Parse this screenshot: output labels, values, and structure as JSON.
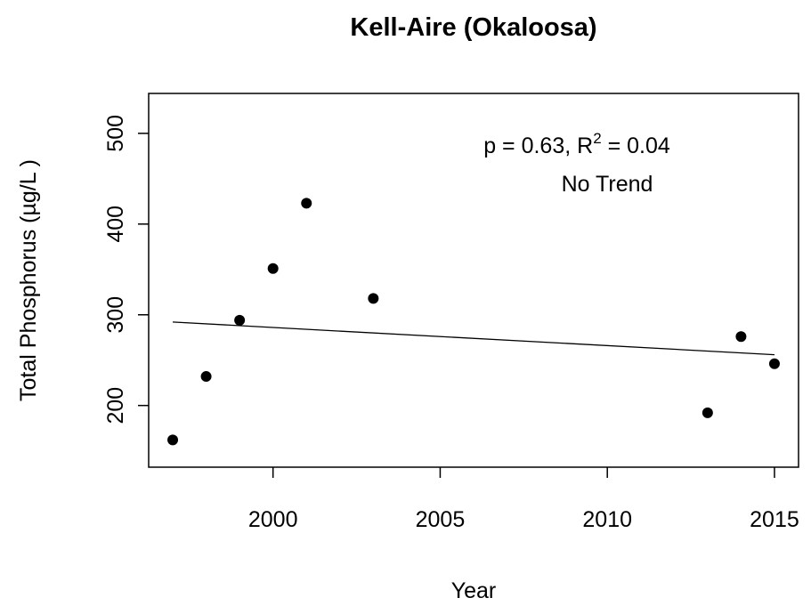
{
  "chart_data": {
    "type": "scatter",
    "title": "Kell-Aire (Okaloosa)",
    "x_label": "Year",
    "y_label": "Total Phosphorus (µg/L )",
    "x": [
      1997,
      1998,
      1999,
      2000,
      2001,
      2003,
      2013,
      2014,
      2015
    ],
    "values": [
      162,
      232,
      294,
      351,
      423,
      318,
      192,
      276,
      246
    ],
    "color": "#000000",
    "trend": {
      "x": [
        1997,
        2015
      ],
      "values": [
        292,
        256
      ]
    },
    "annotation": {
      "stat": "p = 0.63, R",
      "superscript": "2",
      "stat_end": " = 0.04",
      "result": "No Trend"
    },
    "xlim": [
      1996.28,
      2015.72
    ],
    "ylim": [
      132,
      544
    ],
    "xticks": [
      2000,
      2005,
      2010,
      2015
    ],
    "yticks": [
      200,
      300,
      400,
      500
    ]
  }
}
